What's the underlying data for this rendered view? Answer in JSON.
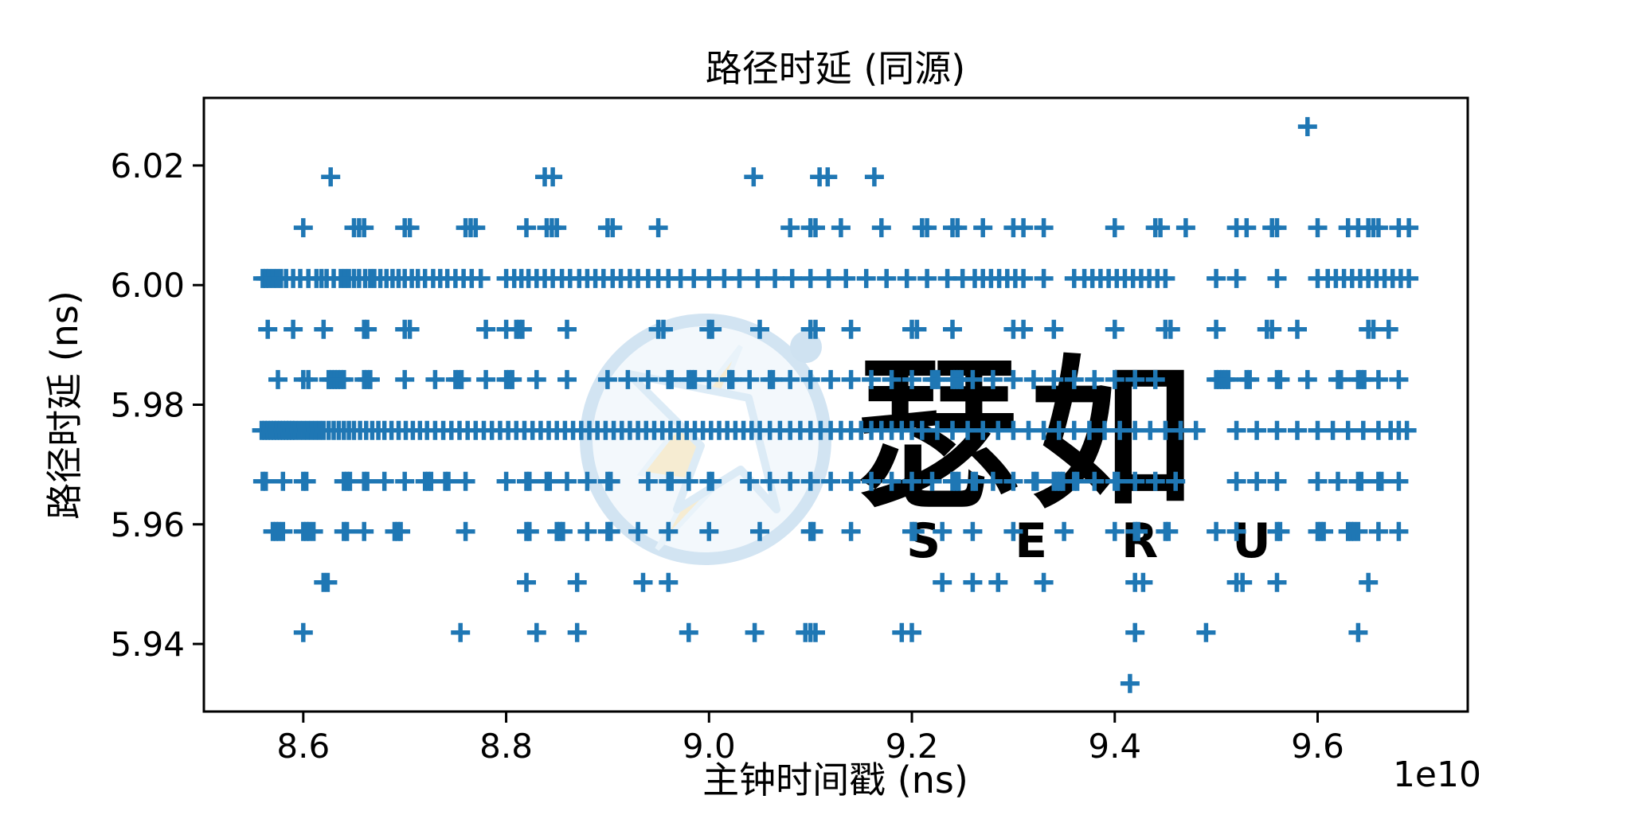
{
  "watermark": {
    "text_cn": "瑟如",
    "text_en": "S E R U"
  },
  "colors": {
    "marker": "#1f77b4",
    "axis": "#000000",
    "background": "#ffffff",
    "watermark_blue": "#d2e4f2",
    "watermark_blue_text": "#d8e9f6",
    "watermark_blue_light": "#e9f3fa",
    "watermark_yellow": "#f6ecd2"
  },
  "chart_data": {
    "type": "scatter",
    "marker_style": "+",
    "title": "路径时延 (同源)",
    "xlabel": "主钟时间戳 (ns)",
    "ylabel": "路径时延 (ns)",
    "x_offset_label": "1e10",
    "grid": false,
    "legend": null,
    "xlim": [
      8.502,
      9.748
    ],
    "ylim": [
      5.9287,
      6.0313
    ],
    "xticks": [
      8.6,
      8.8,
      9.0,
      9.2,
      9.4,
      9.6
    ],
    "xtick_labels": [
      "8.6",
      "8.8",
      "9.0",
      "9.2",
      "9.4",
      "9.6"
    ],
    "yticks": [
      5.94,
      5.96,
      5.98,
      6.0,
      6.02
    ],
    "ytick_labels": [
      "5.94",
      "5.96",
      "5.98",
      "6.00",
      "6.02"
    ],
    "levels": [
      {
        "y": 5.9334,
        "x": [
          9.415
        ]
      },
      {
        "y": 5.9419,
        "x": [
          8.6,
          8.755,
          8.83,
          8.87,
          8.98,
          9.045,
          9.095,
          9.1,
          9.105,
          9.19,
          9.2,
          9.42,
          9.49,
          9.64
        ]
      },
      {
        "y": 5.9503,
        "x": [
          8.62,
          8.624,
          8.82,
          8.87,
          8.935,
          8.96,
          9.23,
          9.26,
          9.285,
          9.33,
          9.42,
          9.428,
          9.52,
          9.526,
          9.56,
          9.65
        ]
      },
      {
        "y": 5.9588,
        "x": [
          8.57,
          8.573,
          8.576,
          8.58,
          8.6,
          8.603,
          8.606,
          8.61,
          8.64,
          8.643,
          8.66,
          8.69,
          8.693,
          8.696,
          8.76,
          8.82,
          8.823,
          8.85,
          8.853,
          8.856,
          8.88,
          8.9,
          8.903,
          8.93,
          8.96,
          9.0,
          9.05,
          9.1,
          9.103,
          9.14,
          9.2,
          9.203,
          9.23,
          9.26,
          9.3,
          9.35,
          9.4,
          9.42,
          9.423,
          9.45,
          9.453,
          9.5,
          9.52,
          9.56,
          9.563,
          9.6,
          9.603,
          9.606,
          9.63,
          9.633,
          9.636,
          9.64,
          9.66,
          9.68
        ]
      },
      {
        "y": 5.9672,
        "x": [
          8.56,
          8.563,
          8.58,
          8.6,
          8.603,
          8.64,
          8.643,
          8.646,
          8.66,
          8.663,
          8.68,
          8.7,
          8.72,
          8.723,
          8.726,
          8.74,
          8.743,
          8.76,
          8.8,
          8.82,
          8.823,
          8.84,
          8.843,
          8.86,
          8.88,
          8.9,
          8.903,
          8.94,
          8.96,
          8.963,
          8.98,
          9.0,
          9.003,
          9.04,
          9.06,
          9.08,
          9.1,
          9.12,
          9.14,
          9.16,
          9.18,
          9.2,
          9.22,
          9.24,
          9.243,
          9.246,
          9.26,
          9.263,
          9.28,
          9.3,
          9.32,
          9.323,
          9.34,
          9.343,
          9.346,
          9.349,
          9.36,
          9.363,
          9.38,
          9.4,
          9.403,
          9.42,
          9.44,
          9.46,
          9.52,
          9.54,
          9.56,
          9.6,
          9.62,
          9.64,
          9.643,
          9.66,
          9.663,
          9.68
        ]
      },
      {
        "y": 5.9757,
        "x": [
          8.559,
          8.562,
          8.565,
          8.568,
          8.571,
          8.574,
          8.577,
          8.58,
          8.583,
          8.586,
          8.589,
          8.592,
          8.596,
          8.6,
          8.604,
          8.608,
          8.612,
          8.616,
          8.62,
          8.625,
          8.63,
          8.635,
          8.64,
          8.645,
          8.65,
          8.656,
          8.662,
          8.668,
          8.674,
          8.68,
          8.687,
          8.694,
          8.701,
          8.708,
          8.715,
          8.722,
          8.73,
          8.738,
          8.746,
          8.754,
          8.762,
          8.77,
          8.778,
          8.786,
          8.794,
          8.802,
          8.81,
          8.818,
          8.826,
          8.834,
          8.842,
          8.85,
          8.858,
          8.866,
          8.874,
          8.882,
          8.89,
          8.898,
          8.906,
          8.914,
          8.922,
          8.93,
          8.938,
          8.946,
          8.954,
          8.962,
          8.97,
          8.978,
          8.986,
          8.994,
          9.002,
          9.01,
          9.018,
          9.026,
          9.034,
          9.042,
          9.05,
          9.06,
          9.07,
          9.08,
          9.09,
          9.1,
          9.11,
          9.12,
          9.13,
          9.14,
          9.15,
          9.16,
          9.17,
          9.18,
          9.19,
          9.2,
          9.21,
          9.225,
          9.24,
          9.255,
          9.27,
          9.285,
          9.3,
          9.315,
          9.33,
          9.345,
          9.36,
          9.375,
          9.39,
          9.405,
          9.42,
          9.435,
          9.45,
          9.465,
          9.48,
          9.52,
          9.54,
          9.56,
          9.58,
          9.6,
          9.615,
          9.63,
          9.645,
          9.66,
          9.672,
          9.68,
          9.688
        ]
      },
      {
        "y": 5.9842,
        "x": [
          8.575,
          8.6,
          8.605,
          8.625,
          8.628,
          8.631,
          8.634,
          8.637,
          8.64,
          8.66,
          8.663,
          8.666,
          8.7,
          8.73,
          8.75,
          8.753,
          8.756,
          8.78,
          8.8,
          8.803,
          8.806,
          8.83,
          8.86,
          8.9,
          8.92,
          8.94,
          8.96,
          8.963,
          8.98,
          8.983,
          8.986,
          9.0,
          9.02,
          9.023,
          9.04,
          9.06,
          9.063,
          9.08,
          9.1,
          9.12,
          9.14,
          9.16,
          9.18,
          9.2,
          9.22,
          9.223,
          9.226,
          9.24,
          9.243,
          9.246,
          9.249,
          9.26,
          9.28,
          9.3,
          9.32,
          9.34,
          9.36,
          9.38,
          9.4,
          9.42,
          9.44,
          9.5,
          9.503,
          9.506,
          9.509,
          9.512,
          9.53,
          9.533,
          9.56,
          9.563,
          9.59,
          9.62,
          9.623,
          9.64,
          9.643,
          9.646,
          9.66,
          9.68
        ]
      },
      {
        "y": 5.9926,
        "x": [
          8.565,
          8.59,
          8.62,
          8.66,
          8.663,
          8.7,
          8.705,
          8.78,
          8.8,
          8.81,
          8.813,
          8.816,
          8.86,
          8.95,
          8.955,
          9.0,
          9.003,
          9.05,
          9.1,
          9.105,
          9.14,
          9.2,
          9.205,
          9.24,
          9.3,
          9.31,
          9.34,
          9.4,
          9.45,
          9.455,
          9.5,
          9.55,
          9.555,
          9.58,
          9.65,
          9.655,
          9.67
        ]
      },
      {
        "y": 6.0011,
        "x": [
          8.56,
          8.563,
          8.566,
          8.57,
          8.574,
          8.578,
          8.583,
          8.59,
          8.597,
          8.605,
          8.613,
          8.618,
          8.623,
          8.63,
          8.637,
          8.641,
          8.645,
          8.65,
          8.655,
          8.661,
          8.666,
          8.67,
          8.676,
          8.682,
          8.688,
          8.694,
          8.7,
          8.707,
          8.713,
          8.72,
          8.728,
          8.735,
          8.742,
          8.75,
          8.758,
          8.766,
          8.775,
          8.8,
          8.808,
          8.815,
          8.822,
          8.83,
          8.838,
          8.846,
          8.855,
          8.863,
          8.872,
          8.88,
          8.888,
          8.896,
          8.905,
          8.913,
          8.922,
          8.93,
          8.94,
          8.95,
          8.96,
          8.972,
          8.985,
          9.0,
          9.015,
          9.03,
          9.048,
          9.065,
          9.082,
          9.1,
          9.118,
          9.135,
          9.155,
          9.175,
          9.195,
          9.215,
          9.235,
          9.25,
          9.262,
          9.27,
          9.278,
          9.286,
          9.294,
          9.302,
          9.31,
          9.33,
          9.36,
          9.37,
          9.378,
          9.386,
          9.394,
          9.402,
          9.41,
          9.418,
          9.426,
          9.434,
          9.442,
          9.45,
          9.5,
          9.52,
          9.56,
          9.6,
          9.61,
          9.618,
          9.626,
          9.634,
          9.642,
          9.65,
          9.658,
          9.666,
          9.674,
          9.682,
          9.69
        ]
      },
      {
        "y": 6.0096,
        "x": [
          8.6,
          8.65,
          8.655,
          8.66,
          8.7,
          8.705,
          8.76,
          8.765,
          8.77,
          8.82,
          8.84,
          8.845,
          8.85,
          8.9,
          8.905,
          8.95,
          9.08,
          9.1,
          9.105,
          9.13,
          9.17,
          9.21,
          9.215,
          9.24,
          9.245,
          9.27,
          9.3,
          9.31,
          9.33,
          9.4,
          9.44,
          9.445,
          9.47,
          9.52,
          9.53,
          9.555,
          9.56,
          9.6,
          9.63,
          9.64,
          9.65,
          9.655,
          9.66,
          9.68,
          9.69
        ]
      },
      {
        "y": 6.0181,
        "x": [
          8.627,
          8.838,
          8.846,
          9.044,
          9.109,
          9.117,
          9.163
        ]
      },
      {
        "y": 6.0265,
        "x": [
          9.59
        ]
      }
    ]
  }
}
